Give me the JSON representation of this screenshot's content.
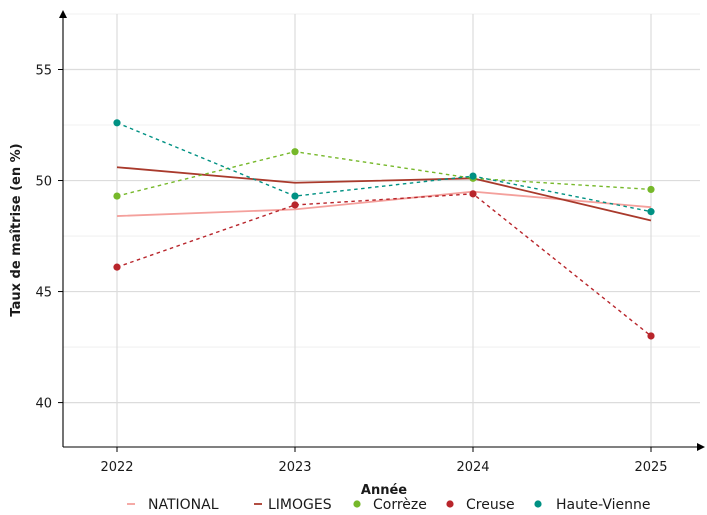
{
  "chart_data": {
    "type": "line",
    "xlabel": "Année",
    "ylabel": "Taux de maîtrise (en %)",
    "x": [
      "2022",
      "2023",
      "2024",
      "2025"
    ],
    "ylim": [
      38,
      57.5
    ],
    "yticks": [
      "40",
      "45",
      "50",
      "55"
    ],
    "grid": true,
    "legend_position": "bottom",
    "series": [
      {
        "name": "NATIONAL",
        "values": [
          48.4,
          48.7,
          49.5,
          48.8
        ],
        "color": "#f4a09c",
        "style": "solid",
        "markers": false
      },
      {
        "name": "LIMOGES",
        "values": [
          50.6,
          49.9,
          50.1,
          48.2
        ],
        "color": "#a93a2c",
        "style": "solid",
        "markers": false
      },
      {
        "name": "Corrèze",
        "values": [
          49.3,
          51.3,
          50.1,
          49.6
        ],
        "color": "#76b82a",
        "style": "dashed",
        "markers": true
      },
      {
        "name": "Creuse",
        "values": [
          46.1,
          48.9,
          49.4,
          43.0
        ],
        "color": "#b8252b",
        "style": "dashed",
        "markers": true
      },
      {
        "name": "Haute-Vienne",
        "values": [
          52.6,
          49.3,
          50.2,
          48.6
        ],
        "color": "#009183",
        "style": "dashed",
        "markers": true
      }
    ],
    "legend": [
      {
        "label": "NATIONAL",
        "symbol": "dash",
        "color": "#f4a09c"
      },
      {
        "label": "LIMOGES",
        "symbol": "dash",
        "color": "#a93a2c"
      },
      {
        "label": "Corrèze",
        "symbol": "dot",
        "color": "#76b82a"
      },
      {
        "label": "Creuse",
        "symbol": "dot",
        "color": "#b8252b"
      },
      {
        "label": "Haute-Vienne",
        "symbol": "dot",
        "color": "#009183"
      }
    ]
  }
}
